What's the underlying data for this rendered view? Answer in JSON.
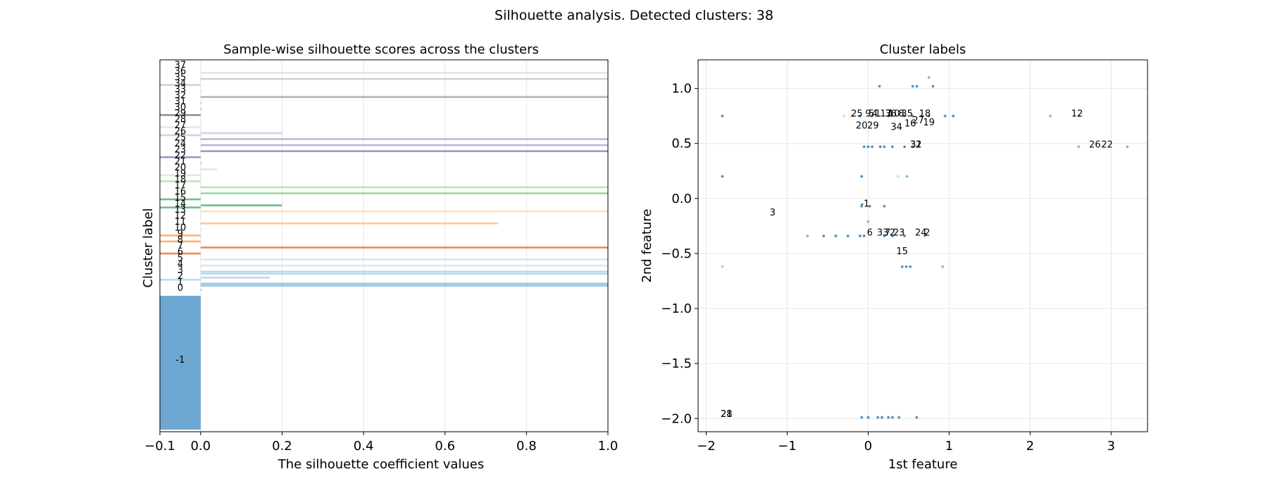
{
  "suptitle": "Silhouette analysis. Detected clusters: 38",
  "chart_data": [
    {
      "type": "bar",
      "title": "Sample-wise silhouette scores across the clusters",
      "xlabel": "The silhouette coefficient values",
      "ylabel": "Cluster label",
      "xlim": [
        -0.1,
        1.0
      ],
      "xticks": [
        "−0.1",
        "0.0",
        "0.2",
        "0.4",
        "0.6",
        "0.8",
        "1.0"
      ],
      "xtick_values": [
        -0.1,
        0.0,
        0.2,
        0.4,
        0.6,
        0.8,
        1.0
      ],
      "grid": true,
      "noise_cluster": {
        "label": "-1",
        "value": -0.1,
        "color": "#3182bd"
      },
      "clusters": [
        {
          "label": "0",
          "values": [
            0.0
          ],
          "color": "#3182bd"
        },
        {
          "label": "1",
          "values": [
            1.0,
            1.0
          ],
          "color": "#6baed6"
        },
        {
          "label": "2",
          "values": [
            0.17,
            -0.1
          ],
          "color": "#9ecae1"
        },
        {
          "label": "3",
          "values": [
            1.0,
            1.0
          ],
          "color": "#9ecae1"
        },
        {
          "label": "4",
          "values": [
            1.0
          ],
          "color": "#c6dbef"
        },
        {
          "label": "5",
          "values": [
            1.0
          ],
          "color": "#c6dbef"
        },
        {
          "label": "6",
          "values": [
            -0.1
          ],
          "color": "#e6550d"
        },
        {
          "label": "7",
          "values": [
            1.0
          ],
          "color": "#e6550d"
        },
        {
          "label": "8",
          "values": [
            -0.1
          ],
          "color": "#fd8d3c"
        },
        {
          "label": "9",
          "values": [
            -0.1
          ],
          "color": "#fd8d3c"
        },
        {
          "label": "10",
          "values": [
            0.0
          ],
          "color": "#fdae6b"
        },
        {
          "label": "11",
          "values": [
            0.73
          ],
          "color": "#fdae6b"
        },
        {
          "label": "12",
          "values": [
            0.0
          ],
          "color": "#fdd0a2"
        },
        {
          "label": "13",
          "values": [
            1.0
          ],
          "color": "#fdd0a2"
        },
        {
          "label": "14",
          "values": [
            0.2,
            -0.1
          ],
          "color": "#31a354"
        },
        {
          "label": "15",
          "values": [
            -0.1
          ],
          "color": "#31a354"
        },
        {
          "label": "16",
          "values": [
            1.0
          ],
          "color": "#74c476"
        },
        {
          "label": "17",
          "values": [
            1.0
          ],
          "color": "#a1d99b"
        },
        {
          "label": "18",
          "values": [
            -0.1
          ],
          "color": "#a1d99b"
        },
        {
          "label": "19",
          "values": [
            -0.1
          ],
          "color": "#c7e9c0"
        },
        {
          "label": "20",
          "values": [
            0.04
          ],
          "color": "#c7e9c0"
        },
        {
          "label": "21",
          "values": [
            0.0
          ],
          "color": "#756bb1"
        },
        {
          "label": "22",
          "values": [
            -0.1
          ],
          "color": "#756bb1"
        },
        {
          "label": "23",
          "values": [
            1.0
          ],
          "color": "#756bb1"
        },
        {
          "label": "24",
          "values": [
            1.0
          ],
          "color": "#9e9ac8"
        },
        {
          "label": "25",
          "values": [
            1.0
          ],
          "color": "#9e9ac8"
        },
        {
          "label": "26",
          "values": [
            0.2,
            -0.1
          ],
          "color": "#bcbddc"
        },
        {
          "label": "27",
          "values": [
            -0.1
          ],
          "color": "#dadaeb"
        },
        {
          "label": "28",
          "values": [
            0.0
          ],
          "color": "#dadaeb"
        },
        {
          "label": "29",
          "values": [
            -0.1
          ],
          "color": "#636363"
        },
        {
          "label": "30",
          "values": [
            0.0
          ],
          "color": "#636363"
        },
        {
          "label": "31",
          "values": [
            0.0
          ],
          "color": "#969696"
        },
        {
          "label": "32",
          "values": [
            1.0
          ],
          "color": "#969696"
        },
        {
          "label": "33",
          "values": [
            0.0
          ],
          "color": "#bdbdbd"
        },
        {
          "label": "34",
          "values": [
            -0.1
          ],
          "color": "#bdbdbd"
        },
        {
          "label": "35",
          "values": [
            1.0
          ],
          "color": "#bdbdbd"
        },
        {
          "label": "36",
          "values": [
            1.0
          ],
          "color": "#d9d9d9"
        },
        {
          "label": "37",
          "values": [
            0.0
          ],
          "color": "#d9d9d9"
        }
      ]
    },
    {
      "type": "scatter",
      "title": "Cluster labels",
      "xlabel": "1st feature",
      "ylabel": "2nd feature",
      "xlim": [
        -2.1,
        3.45
      ],
      "ylim": [
        -2.12,
        1.26
      ],
      "xticks": [
        "−2",
        "−1",
        "0",
        "1",
        "2",
        "3"
      ],
      "xtick_values": [
        -2,
        -1,
        0,
        1,
        2,
        3
      ],
      "yticks": [
        "−2.0",
        "−1.5",
        "−1.0",
        "−0.5",
        "0.0",
        "0.5",
        "1.0"
      ],
      "ytick_values": [
        -2.0,
        -1.5,
        -1.0,
        -0.5,
        0.0,
        0.5,
        1.0
      ],
      "grid": true,
      "points": [
        [
          -1.8,
          0.75,
          "#3182bd"
        ],
        [
          -1.8,
          0.2,
          "#3182bd"
        ],
        [
          -1.8,
          -0.62,
          "#9ecae1"
        ],
        [
          -0.3,
          0.75,
          "#c6dbef"
        ],
        [
          -0.2,
          0.75,
          "#fd8d3c"
        ],
        [
          -0.1,
          0.75,
          "#3182bd"
        ],
        [
          0.05,
          0.75,
          "#3182bd"
        ],
        [
          0.15,
          0.75,
          "#fdae6b"
        ],
        [
          0.25,
          0.75,
          "#3182bd"
        ],
        [
          0.35,
          0.75,
          "#fdd0a2"
        ],
        [
          0.45,
          0.75,
          "#3182bd"
        ],
        [
          0.55,
          0.75,
          "#3182bd"
        ],
        [
          0.65,
          0.75,
          "#9e9ac8"
        ],
        [
          0.75,
          0.75,
          "#3182bd"
        ],
        [
          0.95,
          0.75,
          "#3182bd"
        ],
        [
          1.05,
          0.75,
          "#3182bd"
        ],
        [
          2.25,
          0.75,
          "#fd8d3c"
        ],
        [
          2.6,
          0.75,
          "#fd8d3c"
        ],
        [
          0.14,
          1.02,
          "#3182bd"
        ],
        [
          0.55,
          1.02,
          "#3182bd"
        ],
        [
          0.6,
          1.02,
          "#3182bd"
        ],
        [
          0.8,
          1.02,
          "#3182bd"
        ],
        [
          0.75,
          1.1,
          "#6baed6"
        ],
        [
          -0.05,
          0.47,
          "#3182bd"
        ],
        [
          0.0,
          0.47,
          "#3182bd"
        ],
        [
          0.05,
          0.47,
          "#3182bd"
        ],
        [
          0.15,
          0.47,
          "#3182bd"
        ],
        [
          0.2,
          0.47,
          "#3182bd"
        ],
        [
          0.3,
          0.47,
          "#3182bd"
        ],
        [
          0.45,
          0.47,
          "#3182bd"
        ],
        [
          0.55,
          0.47,
          "#3182bd"
        ],
        [
          0.6,
          0.47,
          "#9e9ac8"
        ],
        [
          2.6,
          0.47,
          "#9e9ac8"
        ],
        [
          3.2,
          0.47,
          "#9e9ac8"
        ],
        [
          -0.08,
          0.2,
          "#3182bd"
        ],
        [
          0.37,
          0.2,
          "#c6dbef"
        ],
        [
          0.48,
          0.2,
          "#6baed6"
        ],
        [
          -0.08,
          -0.07,
          "#3182bd"
        ],
        [
          0.02,
          -0.07,
          "#3182bd"
        ],
        [
          0.2,
          -0.07,
          "#3182bd"
        ],
        [
          0.0,
          -0.21,
          "#6baed6"
        ],
        [
          -0.75,
          -0.34,
          "#6baed6"
        ],
        [
          -0.55,
          -0.34,
          "#3182bd"
        ],
        [
          -0.4,
          -0.34,
          "#3182bd"
        ],
        [
          -0.25,
          -0.34,
          "#3182bd"
        ],
        [
          -0.1,
          -0.34,
          "#3182bd"
        ],
        [
          -0.05,
          -0.34,
          "#3182bd"
        ],
        [
          0.2,
          -0.34,
          "#3182bd"
        ],
        [
          0.3,
          -0.34,
          "#3182bd"
        ],
        [
          0.45,
          -0.34,
          "#3182bd"
        ],
        [
          0.7,
          -0.34,
          "#6baed6"
        ],
        [
          0.42,
          -0.62,
          "#3182bd"
        ],
        [
          0.47,
          -0.62,
          "#3182bd"
        ],
        [
          0.52,
          -0.62,
          "#3182bd"
        ],
        [
          0.92,
          -0.62,
          "#6baed6"
        ],
        [
          -0.08,
          -1.99,
          "#3182bd"
        ],
        [
          0.0,
          -1.99,
          "#3182bd"
        ],
        [
          0.12,
          -1.99,
          "#3182bd"
        ],
        [
          0.17,
          -1.99,
          "#3182bd"
        ],
        [
          0.25,
          -1.99,
          "#3182bd"
        ],
        [
          0.3,
          -1.99,
          "#3182bd"
        ],
        [
          0.38,
          -1.99,
          "#3182bd"
        ],
        [
          0.6,
          -1.99,
          "#3182bd"
        ]
      ],
      "labels": [
        {
          "text": "25",
          "x": -0.14,
          "y": 0.77
        },
        {
          "text": "9",
          "x": 0.0,
          "y": 0.77
        },
        {
          "text": "5",
          "x": 0.04,
          "y": 0.77
        },
        {
          "text": "4",
          "x": 0.08,
          "y": 0.77
        },
        {
          "text": "1",
          "x": 0.12,
          "y": 0.77
        },
        {
          "text": "17",
          "x": 0.22,
          "y": 0.77
        },
        {
          "text": "36",
          "x": 0.28,
          "y": 0.77
        },
        {
          "text": "10",
          "x": 0.32,
          "y": 0.77
        },
        {
          "text": "8",
          "x": 0.41,
          "y": 0.77
        },
        {
          "text": "35",
          "x": 0.48,
          "y": 0.77
        },
        {
          "text": "18",
          "x": 0.7,
          "y": 0.77
        },
        {
          "text": "12",
          "x": 2.58,
          "y": 0.77
        },
        {
          "text": "20",
          "x": -0.08,
          "y": 0.66
        },
        {
          "text": "29",
          "x": 0.06,
          "y": 0.66
        },
        {
          "text": "34",
          "x": 0.35,
          "y": 0.65
        },
        {
          "text": "16",
          "x": 0.52,
          "y": 0.68
        },
        {
          "text": "27",
          "x": 0.62,
          "y": 0.71
        },
        {
          "text": "19",
          "x": 0.75,
          "y": 0.69
        },
        {
          "text": "31",
          "x": 0.59,
          "y": 0.49
        },
        {
          "text": "32",
          "x": 0.59,
          "y": 0.49
        },
        {
          "text": "26",
          "x": 2.8,
          "y": 0.49
        },
        {
          "text": "22",
          "x": 2.95,
          "y": 0.49
        },
        {
          "text": "-1",
          "x": -0.04,
          "y": -0.05
        },
        {
          "text": "3",
          "x": -1.18,
          "y": -0.13
        },
        {
          "text": "6",
          "x": 0.02,
          "y": -0.31
        },
        {
          "text": "33",
          "x": 0.18,
          "y": -0.31
        },
        {
          "text": "7",
          "x": 0.24,
          "y": -0.31
        },
        {
          "text": "2",
          "x": 0.3,
          "y": -0.31
        },
        {
          "text": "23",
          "x": 0.38,
          "y": -0.31
        },
        {
          "text": "24",
          "x": 0.65,
          "y": -0.31
        },
        {
          "text": "2",
          "x": 0.73,
          "y": -0.31
        },
        {
          "text": "15",
          "x": 0.42,
          "y": -0.48
        },
        {
          "text": "21",
          "x": -1.75,
          "y": -1.96
        },
        {
          "text": "28",
          "x": -1.75,
          "y": -1.96
        }
      ]
    }
  ]
}
